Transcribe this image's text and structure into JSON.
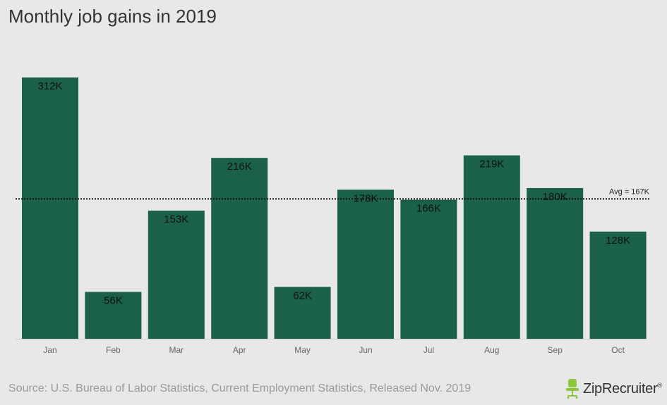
{
  "title": "Monthly job gains in 2019",
  "source": "Source: U.S. Bureau of Labor Statistics, Current Employment Statistics, Released Nov. 2019",
  "logo_text": "ZipRecruiter",
  "logo_mark": "®",
  "colors": {
    "background": "#e8e8e8",
    "bar": "#1b604a",
    "label": "#111111",
    "axis_text": "#666666",
    "logo_icon": "#8dc63f"
  },
  "chart_data": {
    "type": "bar",
    "title": "Monthly job gains in 2019",
    "xlabel": "",
    "ylabel": "",
    "categories": [
      "Jan",
      "Feb",
      "Mar",
      "Apr",
      "May",
      "Jun",
      "Jul",
      "Aug",
      "Sep",
      "Oct"
    ],
    "values": [
      312,
      56,
      153,
      216,
      62,
      178,
      166,
      219,
      180,
      128
    ],
    "data_labels": [
      "312K",
      "56K",
      "153K",
      "216K",
      "62K",
      "178K",
      "166K",
      "219K",
      "180K",
      "128K"
    ],
    "ylim": [
      0,
      312
    ],
    "average": {
      "value": 167,
      "label": "Avg = 167K"
    },
    "grid": false,
    "legend": "none"
  }
}
